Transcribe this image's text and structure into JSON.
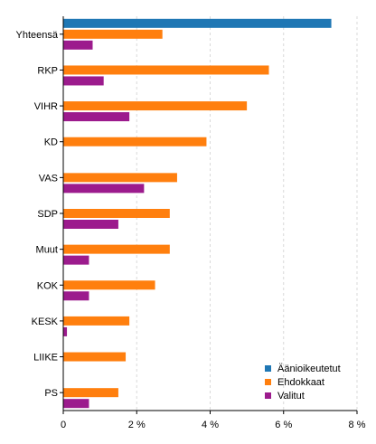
{
  "chart_data": {
    "type": "bar",
    "orientation": "horizontal",
    "categories": [
      "Yhteensä",
      "RKP",
      "VIHR",
      "KD",
      "VAS",
      "SDP",
      "Muut",
      "KOK",
      "KESK",
      "LIIKE",
      "PS"
    ],
    "series": [
      {
        "name": "Äänioikeutetut",
        "color": "#1f77b4",
        "values": [
          7.3,
          null,
          null,
          null,
          null,
          null,
          null,
          null,
          null,
          null,
          null
        ]
      },
      {
        "name": "Ehdokkaat",
        "color": "#ff7f0e",
        "values": [
          2.7,
          5.6,
          5.0,
          3.9,
          3.1,
          2.9,
          2.9,
          2.5,
          1.8,
          1.7,
          1.5
        ]
      },
      {
        "name": "Valitut",
        "color": "#9c1b8d",
        "values": [
          0.8,
          1.1,
          1.8,
          null,
          2.2,
          1.5,
          0.7,
          0.7,
          0.1,
          null,
          0.7
        ]
      }
    ],
    "xlim": [
      0,
      8
    ],
    "xticks": [
      0,
      2,
      4,
      6,
      8
    ],
    "xtick_labels": [
      "0",
      "2 %",
      "4 %",
      "6 %",
      "8 %"
    ],
    "grid": true,
    "legend_position": "bottom-right"
  },
  "colors": {
    "grid": "#d9d9d9",
    "axis": "#000000"
  }
}
